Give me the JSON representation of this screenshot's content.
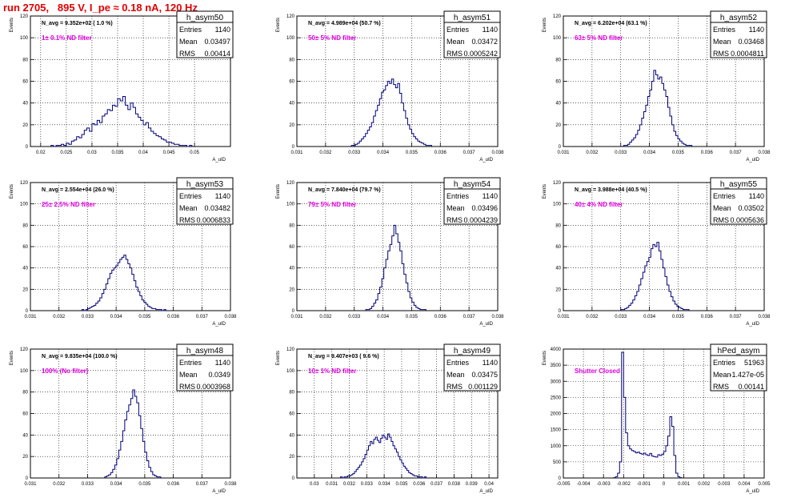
{
  "header": {
    "run_title": "run 2705,   895 V, I_pe ≈ 0.18 nA, 120 Hz"
  },
  "colors": {
    "histogram": "#00007a",
    "annotation": "#e000e0",
    "title": "#e00000",
    "grid": "#000000"
  },
  "chart_data": [
    {
      "type": "histogram",
      "name": "h_asym50",
      "nav": "N_avg = 9.352e+02 ( 1.0 %)",
      "filter": "1± 0.1% ND filter",
      "stats": {
        "Entries": "1140",
        "Mean": "0.03497",
        "RMS": "0.00414"
      },
      "xlim": [
        0.018,
        0.057
      ],
      "ylim": [
        0,
        120
      ],
      "xticks": [
        0.02,
        0.025,
        0.03,
        0.035,
        0.04,
        0.045,
        0.05
      ],
      "xticklabels": [
        "0.02",
        "0.025",
        "0.03",
        "0.035",
        "0.04",
        "0.045",
        "0.05"
      ],
      "yticks": [
        0,
        20,
        40,
        60,
        80,
        100,
        120
      ],
      "xlabel": "A_uID",
      "ylabel": "Events",
      "bin_start": 0.022,
      "bin_width": 0.0005,
      "values": [
        1,
        0,
        1,
        1,
        2,
        1,
        3,
        2,
        5,
        6,
        9,
        8,
        11,
        15,
        17,
        14,
        21,
        20,
        24,
        22,
        28,
        30,
        34,
        33,
        38,
        37,
        44,
        42,
        46,
        38,
        34,
        40,
        36,
        30,
        27,
        24,
        20,
        22,
        17,
        14,
        12,
        10,
        9,
        7,
        6,
        4,
        4,
        3,
        2,
        2,
        1,
        1,
        1,
        0,
        1
      ]
    },
    {
      "type": "histogram",
      "name": "h_asym51",
      "nav": "N_avg = 4.989e+04 (50.7 %)",
      "filter": "50± 5% ND filter",
      "stats": {
        "Entries": "1140",
        "Mean": "0.03472",
        "RMS": "0.0005242"
      },
      "xlim": [
        0.031,
        0.038
      ],
      "ylim": [
        0,
        120
      ],
      "xticks": [
        0.031,
        0.032,
        0.033,
        0.034,
        0.035,
        0.036,
        0.037,
        0.038
      ],
      "xticklabels": [
        "0.031",
        "0.032",
        "0.033",
        "0.034",
        "0.035",
        "0.036",
        "0.037",
        "0.038"
      ],
      "yticks": [
        0,
        20,
        40,
        60,
        80,
        100,
        120
      ],
      "xlabel": "A_uID",
      "ylabel": "Events",
      "bin_start": 0.0329,
      "bin_width": 7e-05,
      "values": [
        1,
        1,
        2,
        3,
        5,
        7,
        9,
        12,
        15,
        18,
        22,
        28,
        33,
        38,
        44,
        50,
        52,
        56,
        60,
        58,
        62,
        57,
        54,
        58,
        49,
        40,
        33,
        26,
        20,
        16,
        12,
        9,
        7,
        5,
        4,
        3,
        2,
        1,
        1,
        1
      ]
    },
    {
      "type": "histogram",
      "name": "h_asym52",
      "nav": "N_avg = 6.202e+04 (63.1 %)",
      "filter": "63± 5% ND filter",
      "stats": {
        "Entries": "1140",
        "Mean": "0.03468",
        "RMS": "0.0004811"
      },
      "xlim": [
        0.031,
        0.038
      ],
      "ylim": [
        0,
        120
      ],
      "xticks": [
        0.031,
        0.032,
        0.033,
        0.034,
        0.035,
        0.036,
        0.037,
        0.038
      ],
      "xticklabels": [
        "0.031",
        "0.032",
        "0.033",
        "0.034",
        "0.035",
        "0.036",
        "0.037",
        "0.038"
      ],
      "yticks": [
        0,
        20,
        40,
        60,
        80,
        100,
        120
      ],
      "xlabel": "A_uID",
      "ylabel": "Events",
      "bin_start": 0.0331,
      "bin_width": 7e-05,
      "values": [
        1,
        1,
        2,
        4,
        6,
        8,
        11,
        15,
        20,
        26,
        32,
        38,
        46,
        52,
        60,
        70,
        66,
        62,
        64,
        58,
        52,
        46,
        36,
        28,
        20,
        14,
        10,
        7,
        5,
        3,
        2,
        1,
        1,
        1
      ]
    },
    {
      "type": "histogram",
      "name": "h_asym53",
      "nav": "N_avg = 2.554e+04 (26.0 %)",
      "filter": "25± 2.5% ND filter",
      "stats": {
        "Entries": "1140",
        "Mean": "0.03482",
        "RMS": "0.0006833"
      },
      "xlim": [
        0.031,
        0.038
      ],
      "ylim": [
        0,
        120
      ],
      "xticks": [
        0.031,
        0.032,
        0.033,
        0.034,
        0.035,
        0.036,
        0.037,
        0.038
      ],
      "xticklabels": [
        "0.031",
        "0.032",
        "0.033",
        "0.034",
        "0.035",
        "0.036",
        "0.037",
        "0.038"
      ],
      "yticks": [
        0,
        20,
        40,
        60,
        80,
        100,
        120
      ],
      "xlabel": "A_uID",
      "ylabel": "Events",
      "bin_start": 0.0328,
      "bin_width": 7e-05,
      "values": [
        1,
        0,
        1,
        2,
        3,
        4,
        5,
        7,
        9,
        12,
        16,
        20,
        25,
        30,
        35,
        38,
        40,
        42,
        45,
        48,
        50,
        52,
        48,
        44,
        40,
        34,
        28,
        22,
        18,
        14,
        10,
        8,
        6,
        4,
        3,
        2,
        2,
        1,
        1,
        1,
        0,
        1
      ]
    },
    {
      "type": "histogram",
      "name": "h_asym54",
      "nav": "N_avg = 7.840e+04 (79.7 %)",
      "filter": "79± 5% ND filter",
      "stats": {
        "Entries": "1140",
        "Mean": "0.03496",
        "RMS": "0.0004239"
      },
      "xlim": [
        0.031,
        0.038
      ],
      "ylim": [
        0,
        120
      ],
      "xticks": [
        0.031,
        0.032,
        0.033,
        0.034,
        0.035,
        0.036,
        0.037,
        0.038
      ],
      "xticklabels": [
        "0.031",
        "0.032",
        "0.033",
        "0.034",
        "0.035",
        "0.036",
        "0.037",
        "0.038"
      ],
      "yticks": [
        0,
        20,
        40,
        60,
        80,
        100,
        120
      ],
      "xlabel": "A_uID",
      "ylabel": "Events",
      "bin_start": 0.0334,
      "bin_width": 7e-05,
      "values": [
        1,
        1,
        2,
        4,
        7,
        10,
        16,
        22,
        30,
        40,
        48,
        56,
        62,
        70,
        80,
        72,
        64,
        56,
        44,
        34,
        26,
        18,
        12,
        8,
        5,
        3,
        2,
        1,
        1,
        1
      ]
    },
    {
      "type": "histogram",
      "name": "h_asym55",
      "nav": "N_avg = 3.988e+04 (40.5 %)",
      "filter": "40± 4% ND filter",
      "stats": {
        "Entries": "1140",
        "Mean": "0.03502",
        "RMS": "0.0005636"
      },
      "xlim": [
        0.031,
        0.038
      ],
      "ylim": [
        0,
        120
      ],
      "xticks": [
        0.031,
        0.032,
        0.033,
        0.034,
        0.035,
        0.036,
        0.037,
        0.038
      ],
      "xticklabels": [
        "0.031",
        "0.032",
        "0.033",
        "0.034",
        "0.035",
        "0.036",
        "0.037",
        "0.038"
      ],
      "yticks": [
        0,
        20,
        40,
        60,
        80,
        100,
        120
      ],
      "xlabel": "A_uID",
      "ylabel": "Events",
      "bin_start": 0.033,
      "bin_width": 7e-05,
      "values": [
        1,
        1,
        2,
        3,
        5,
        7,
        10,
        14,
        18,
        24,
        30,
        36,
        42,
        46,
        50,
        58,
        62,
        60,
        64,
        56,
        48,
        40,
        32,
        24,
        18,
        13,
        9,
        6,
        4,
        3,
        2,
        1,
        1,
        1
      ]
    },
    {
      "type": "histogram",
      "name": "h_asym48",
      "nav": "N_avg = 9.835e+04 (100.0 %)",
      "filter": "100% (No filter)",
      "stats": {
        "Entries": "1140",
        "Mean": "0.0349",
        "RMS": "0.0003968"
      },
      "xlim": [
        0.031,
        0.038
      ],
      "ylim": [
        0,
        120
      ],
      "xticks": [
        0.031,
        0.032,
        0.033,
        0.034,
        0.035,
        0.036,
        0.037,
        0.038
      ],
      "xticklabels": [
        "0.031",
        "0.032",
        "0.033",
        "0.034",
        "0.035",
        "0.036",
        "0.037",
        "0.038"
      ],
      "yticks": [
        0,
        20,
        40,
        60,
        80,
        100,
        120
      ],
      "xlabel": "A_uID",
      "ylabel": "Events",
      "bin_start": 0.0336,
      "bin_width": 7e-05,
      "values": [
        1,
        2,
        3,
        5,
        8,
        12,
        18,
        26,
        34,
        44,
        54,
        62,
        68,
        74,
        82,
        76,
        70,
        58,
        46,
        34,
        24,
        16,
        10,
        6,
        3,
        2,
        1,
        1
      ]
    },
    {
      "type": "histogram",
      "name": "h_asym49",
      "nav": "N_avg = 9.407e+03 ( 9.6 %)",
      "filter": "10± 1% ND filter",
      "stats": {
        "Entries": "1140",
        "Mean": "0.03475",
        "RMS": "0.001129"
      },
      "xlim": [
        0.029,
        0.0405
      ],
      "ylim": [
        0,
        120
      ],
      "xticks": [
        0.03,
        0.031,
        0.032,
        0.033,
        0.034,
        0.035,
        0.036,
        0.037,
        0.038,
        0.039,
        0.04
      ],
      "xticklabels": [
        "0.03",
        "0.031",
        "0.032",
        "0.033",
        "0.034",
        "0.035",
        "0.036",
        "0.037",
        "0.038",
        "0.039",
        "0.04"
      ],
      "yticks": [
        0,
        20,
        40,
        60,
        80,
        100,
        120
      ],
      "xlabel": "A_uID",
      "ylabel": "Events",
      "bin_start": 0.0315,
      "bin_width": 0.0001,
      "values": [
        1,
        0,
        1,
        1,
        2,
        2,
        3,
        4,
        6,
        8,
        10,
        12,
        15,
        18,
        22,
        26,
        30,
        34,
        32,
        36,
        38,
        35,
        33,
        37,
        40,
        38,
        36,
        41,
        38,
        34,
        30,
        27,
        24,
        20,
        17,
        14,
        11,
        9,
        7,
        5,
        4,
        3,
        2,
        2,
        1,
        1,
        1,
        0,
        1
      ]
    },
    {
      "type": "histogram",
      "name": "hPed_asym",
      "nav": "",
      "filter": "Shutter Closed",
      "stats": {
        "Entries": "51963",
        "Mean": "-1.427e-05",
        "RMS": "0.00141"
      },
      "xlim": [
        -0.005,
        0.005
      ],
      "ylim": [
        0,
        4000
      ],
      "xticks": [
        -0.005,
        -0.004,
        -0.003,
        -0.002,
        -0.001,
        0,
        0.001,
        0.002,
        0.003,
        0.004,
        0.005
      ],
      "xticklabels": [
        "-0.005",
        "-0.004",
        "-0.003",
        "-0.002",
        "-0.001",
        "0",
        "0.001",
        "0.002",
        "0.003",
        "0.004",
        "0.005"
      ],
      "yticks": [
        0,
        500,
        1000,
        1500,
        2000,
        2500,
        3000,
        3500,
        4000
      ],
      "xlabel": "A_uID",
      "ylabel": "Events",
      "bin_start": -0.0025,
      "bin_width": 0.0001,
      "values": [
        10,
        40,
        150,
        500,
        3900,
        2500,
        1400,
        1000,
        900,
        850,
        820,
        780,
        800,
        760,
        740,
        770,
        720,
        700,
        760,
        680,
        660,
        650,
        720,
        700,
        740,
        820,
        1000,
        1300,
        1900,
        1600,
        700,
        150,
        40,
        10
      ]
    }
  ]
}
